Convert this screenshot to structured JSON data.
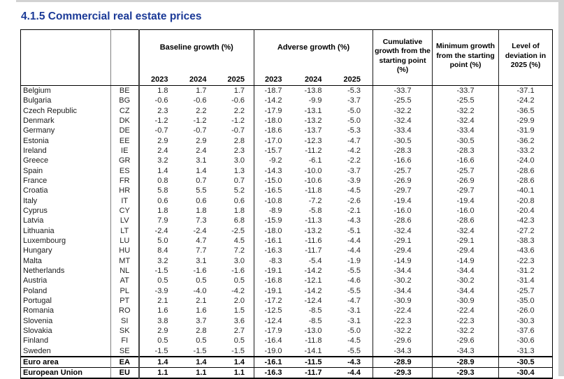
{
  "title": "4.1.5 Commercial real estate prices",
  "colors": {
    "title_blue": "#1b3a97"
  },
  "table": {
    "col_groups": [
      {
        "label": "Baseline growth (%)",
        "years": [
          "2023",
          "2024",
          "2025"
        ]
      },
      {
        "label": "Adverse growth (%)",
        "years": [
          "2023",
          "2024",
          "2025"
        ]
      }
    ],
    "summary_headers": [
      "Cumulative growth from the starting point (%)",
      "Minimum growth from the starting point (%)",
      "Level of deviation in 2025 (%)"
    ],
    "rows": [
      {
        "country": "Belgium",
        "code": "BE",
        "baseline": [
          "1.8",
          "1.7",
          "1.7"
        ],
        "adverse": [
          "-18.7",
          "-13.8",
          "-5.3"
        ],
        "cumulative": "-33.7",
        "minimum": "-33.7",
        "deviation": "-37.1",
        "bold": false
      },
      {
        "country": "Bulgaria",
        "code": "BG",
        "baseline": [
          "-0.6",
          "-0.6",
          "-0.6"
        ],
        "adverse": [
          "-14.2",
          "-9.9",
          "-3.7"
        ],
        "cumulative": "-25.5",
        "minimum": "-25.5",
        "deviation": "-24.2",
        "bold": false
      },
      {
        "country": "Czech Republic",
        "code": "CZ",
        "baseline": [
          "2.3",
          "2.2",
          "2.2"
        ],
        "adverse": [
          "-17.9",
          "-13.1",
          "-5.0"
        ],
        "cumulative": "-32.2",
        "minimum": "-32.2",
        "deviation": "-36.5",
        "bold": false
      },
      {
        "country": "Denmark",
        "code": "DK",
        "baseline": [
          "-1.2",
          "-1.2",
          "-1.2"
        ],
        "adverse": [
          "-18.0",
          "-13.2",
          "-5.0"
        ],
        "cumulative": "-32.4",
        "minimum": "-32.4",
        "deviation": "-29.9",
        "bold": false
      },
      {
        "country": "Germany",
        "code": "DE",
        "baseline": [
          "-0.7",
          "-0.7",
          "-0.7"
        ],
        "adverse": [
          "-18.6",
          "-13.7",
          "-5.3"
        ],
        "cumulative": "-33.4",
        "minimum": "-33.4",
        "deviation": "-31.9",
        "bold": false
      },
      {
        "country": "Estonia",
        "code": "EE",
        "baseline": [
          "2.9",
          "2.9",
          "2.8"
        ],
        "adverse": [
          "-17.0",
          "-12.3",
          "-4.7"
        ],
        "cumulative": "-30.5",
        "minimum": "-30.5",
        "deviation": "-36.2",
        "bold": false
      },
      {
        "country": "Ireland",
        "code": "IE",
        "baseline": [
          "2.4",
          "2.4",
          "2.3"
        ],
        "adverse": [
          "-15.7",
          "-11.2",
          "-4.2"
        ],
        "cumulative": "-28.3",
        "minimum": "-28.3",
        "deviation": "-33.2",
        "bold": false
      },
      {
        "country": "Greece",
        "code": "GR",
        "baseline": [
          "3.2",
          "3.1",
          "3.0"
        ],
        "adverse": [
          "-9.2",
          "-6.1",
          "-2.2"
        ],
        "cumulative": "-16.6",
        "minimum": "-16.6",
        "deviation": "-24.0",
        "bold": false
      },
      {
        "country": "Spain",
        "code": "ES",
        "baseline": [
          "1.4",
          "1.4",
          "1.3"
        ],
        "adverse": [
          "-14.3",
          "-10.0",
          "-3.7"
        ],
        "cumulative": "-25.7",
        "minimum": "-25.7",
        "deviation": "-28.6",
        "bold": false
      },
      {
        "country": "France",
        "code": "FR",
        "baseline": [
          "0.8",
          "0.7",
          "0.7"
        ],
        "adverse": [
          "-15.0",
          "-10.6",
          "-3.9"
        ],
        "cumulative": "-26.9",
        "minimum": "-26.9",
        "deviation": "-28.6",
        "bold": false
      },
      {
        "country": "Croatia",
        "code": "HR",
        "baseline": [
          "5.8",
          "5.5",
          "5.2"
        ],
        "adverse": [
          "-16.5",
          "-11.8",
          "-4.5"
        ],
        "cumulative": "-29.7",
        "minimum": "-29.7",
        "deviation": "-40.1",
        "bold": false
      },
      {
        "country": "Italy",
        "code": "IT",
        "baseline": [
          "0.6",
          "0.6",
          "0.6"
        ],
        "adverse": [
          "-10.8",
          "-7.2",
          "-2.6"
        ],
        "cumulative": "-19.4",
        "minimum": "-19.4",
        "deviation": "-20.8",
        "bold": false
      },
      {
        "country": "Cyprus",
        "code": "CY",
        "baseline": [
          "1.8",
          "1.8",
          "1.8"
        ],
        "adverse": [
          "-8.9",
          "-5.8",
          "-2.1"
        ],
        "cumulative": "-16.0",
        "minimum": "-16.0",
        "deviation": "-20.4",
        "bold": false
      },
      {
        "country": "Latvia",
        "code": "LV",
        "baseline": [
          "7.9",
          "7.3",
          "6.8"
        ],
        "adverse": [
          "-15.9",
          "-11.3",
          "-4.3"
        ],
        "cumulative": "-28.6",
        "minimum": "-28.6",
        "deviation": "-42.3",
        "bold": false
      },
      {
        "country": "Lithuania",
        "code": "LT",
        "baseline": [
          "-2.4",
          "-2.4",
          "-2.5"
        ],
        "adverse": [
          "-18.0",
          "-13.2",
          "-5.1"
        ],
        "cumulative": "-32.4",
        "minimum": "-32.4",
        "deviation": "-27.2",
        "bold": false
      },
      {
        "country": "Luxembourg",
        "code": "LU",
        "baseline": [
          "5.0",
          "4.7",
          "4.5"
        ],
        "adverse": [
          "-16.1",
          "-11.6",
          "-4.4"
        ],
        "cumulative": "-29.1",
        "minimum": "-29.1",
        "deviation": "-38.3",
        "bold": false
      },
      {
        "country": "Hungary",
        "code": "HU",
        "baseline": [
          "8.4",
          "7.7",
          "7.2"
        ],
        "adverse": [
          "-16.3",
          "-11.7",
          "-4.4"
        ],
        "cumulative": "-29.4",
        "minimum": "-29.4",
        "deviation": "-43.6",
        "bold": false
      },
      {
        "country": "Malta",
        "code": "MT",
        "baseline": [
          "3.2",
          "3.1",
          "3.0"
        ],
        "adverse": [
          "-8.3",
          "-5.4",
          "-1.9"
        ],
        "cumulative": "-14.9",
        "minimum": "-14.9",
        "deviation": "-22.3",
        "bold": false
      },
      {
        "country": "Netherlands",
        "code": "NL",
        "baseline": [
          "-1.5",
          "-1.6",
          "-1.6"
        ],
        "adverse": [
          "-19.1",
          "-14.2",
          "-5.5"
        ],
        "cumulative": "-34.4",
        "minimum": "-34.4",
        "deviation": "-31.2",
        "bold": false
      },
      {
        "country": "Austria",
        "code": "AT",
        "baseline": [
          "0.5",
          "0.5",
          "0.5"
        ],
        "adverse": [
          "-16.8",
          "-12.1",
          "-4.6"
        ],
        "cumulative": "-30.2",
        "minimum": "-30.2",
        "deviation": "-31.4",
        "bold": false
      },
      {
        "country": "Poland",
        "code": "PL",
        "baseline": [
          "-3.9",
          "-4.0",
          "-4.2"
        ],
        "adverse": [
          "-19.1",
          "-14.2",
          "-5.5"
        ],
        "cumulative": "-34.4",
        "minimum": "-34.4",
        "deviation": "-25.7",
        "bold": false
      },
      {
        "country": "Portugal",
        "code": "PT",
        "baseline": [
          "2.1",
          "2.1",
          "2.0"
        ],
        "adverse": [
          "-17.2",
          "-12.4",
          "-4.7"
        ],
        "cumulative": "-30.9",
        "minimum": "-30.9",
        "deviation": "-35.0",
        "bold": false
      },
      {
        "country": "Romania",
        "code": "RO",
        "baseline": [
          "1.6",
          "1.6",
          "1.5"
        ],
        "adverse": [
          "-12.5",
          "-8.5",
          "-3.1"
        ],
        "cumulative": "-22.4",
        "minimum": "-22.4",
        "deviation": "-26.0",
        "bold": false
      },
      {
        "country": "Slovenia",
        "code": "SI",
        "baseline": [
          "3.8",
          "3.7",
          "3.6"
        ],
        "adverse": [
          "-12.4",
          "-8.5",
          "-3.1"
        ],
        "cumulative": "-22.3",
        "minimum": "-22.3",
        "deviation": "-30.3",
        "bold": false
      },
      {
        "country": "Slovakia",
        "code": "SK",
        "baseline": [
          "2.9",
          "2.8",
          "2.7"
        ],
        "adverse": [
          "-17.9",
          "-13.0",
          "-5.0"
        ],
        "cumulative": "-32.2",
        "minimum": "-32.2",
        "deviation": "-37.6",
        "bold": false
      },
      {
        "country": "Finland",
        "code": "FI",
        "baseline": [
          "0.5",
          "0.5",
          "0.5"
        ],
        "adverse": [
          "-16.4",
          "-11.8",
          "-4.5"
        ],
        "cumulative": "-29.6",
        "minimum": "-29.6",
        "deviation": "-30.6",
        "bold": false
      },
      {
        "country": "Sweden",
        "code": "SE",
        "baseline": [
          "-1.5",
          "-1.5",
          "-1.5"
        ],
        "adverse": [
          "-19.0",
          "-14.1",
          "-5.5"
        ],
        "cumulative": "-34.3",
        "minimum": "-34.3",
        "deviation": "-31.3",
        "bold": false
      },
      {
        "country": "Euro area",
        "code": "EA",
        "baseline": [
          "1.4",
          "1.4",
          "1.4"
        ],
        "adverse": [
          "-16.1",
          "-11.5",
          "-4.3"
        ],
        "cumulative": "-28.9",
        "minimum": "-28.9",
        "deviation": "-30.5",
        "bold": true,
        "thick_top_border": true
      },
      {
        "country": "European Union",
        "code": "EU",
        "baseline": [
          "1.1",
          "1.1",
          "1.1"
        ],
        "adverse": [
          "-16.3",
          "-11.7",
          "-4.4"
        ],
        "cumulative": "-29.3",
        "minimum": "-29.3",
        "deviation": "-30.4",
        "bold": true
      }
    ]
  }
}
